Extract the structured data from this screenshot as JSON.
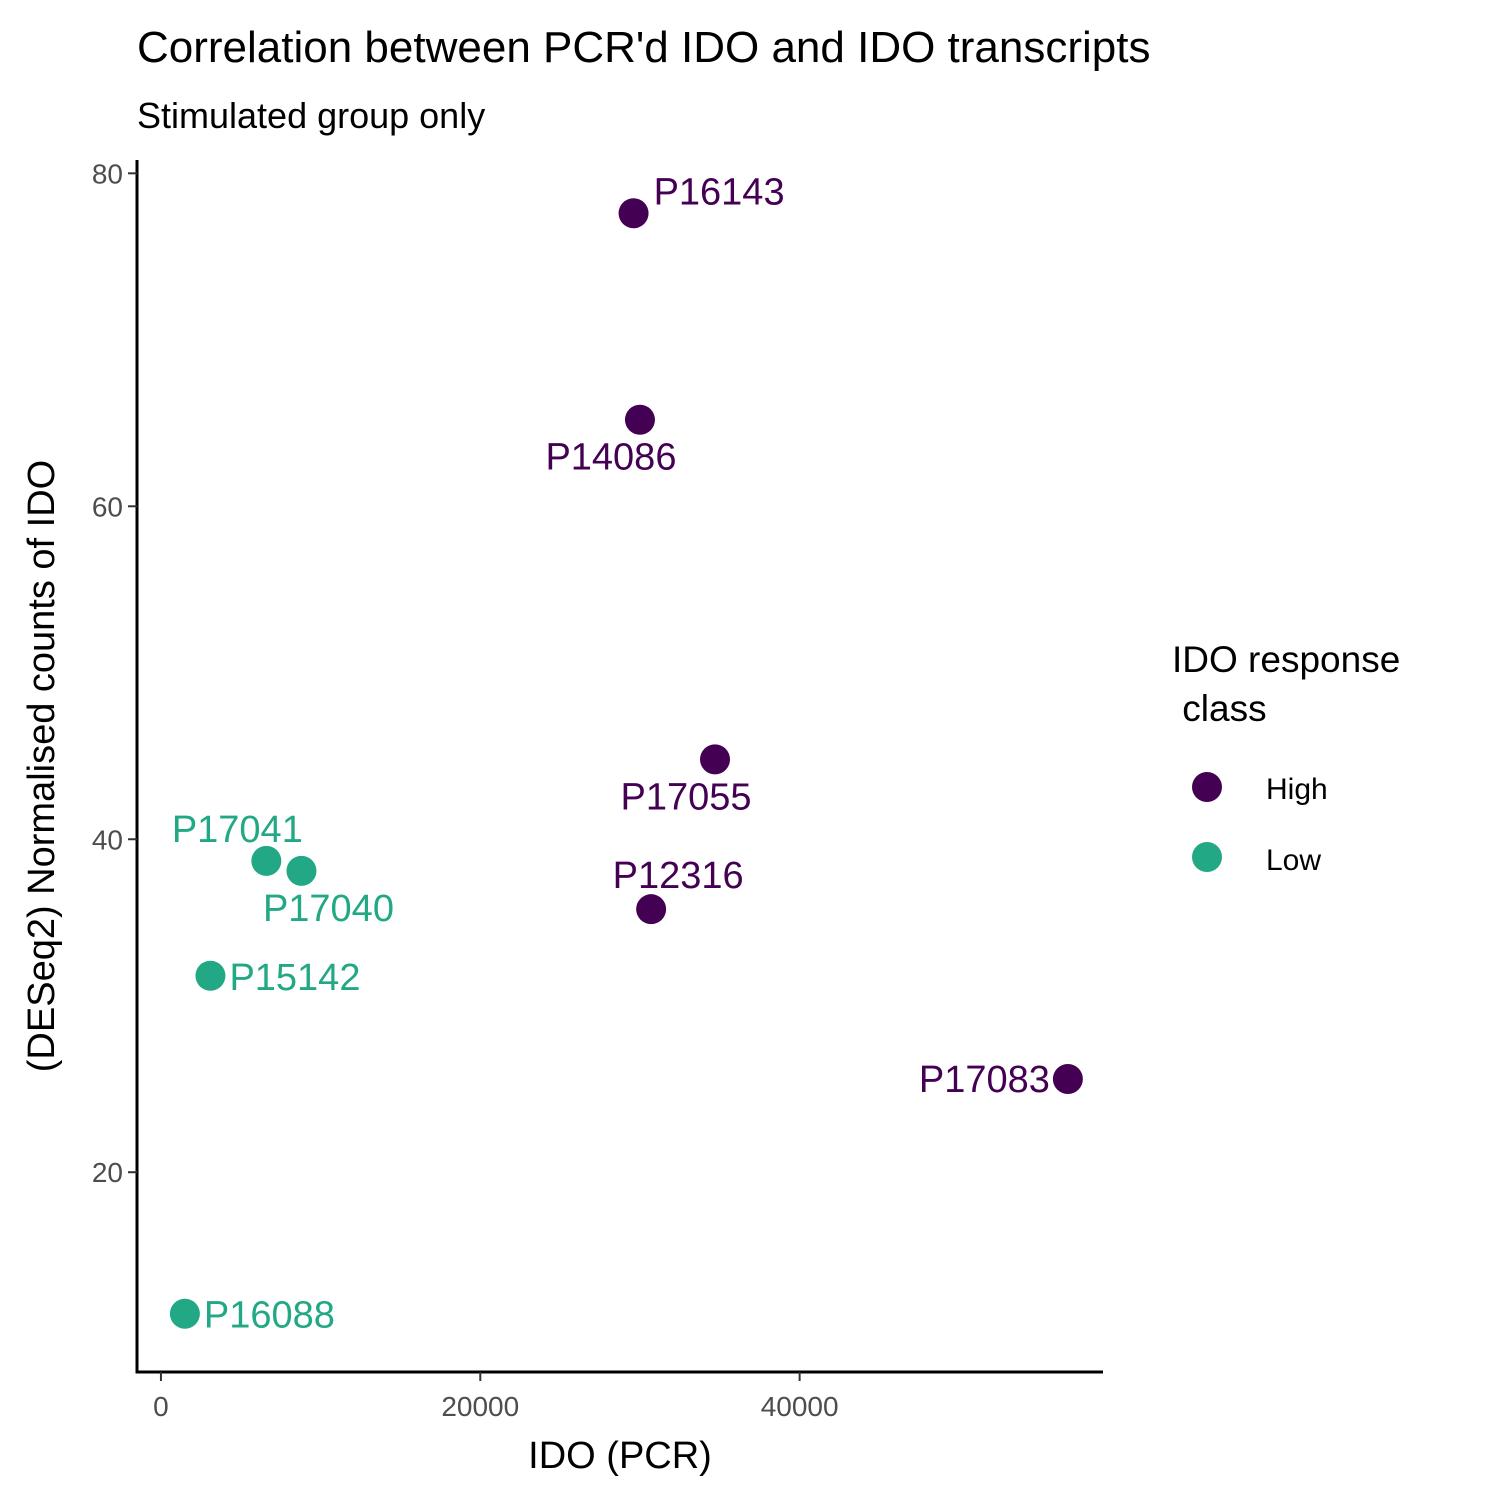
{
  "chart_data": {
    "type": "scatter",
    "title": "Correlation between PCR'd IDO and IDO transcripts",
    "subtitle": "Stimulated group only",
    "xlabel": "IDO (PCR)",
    "ylabel": "(DESeq2) Normalised counts of IDO",
    "xlim": [
      -1500,
      59000
    ],
    "ylim": [
      8,
      80.8
    ],
    "x_ticks": [
      0,
      20000,
      40000
    ],
    "x_tick_labels": [
      "0",
      "20000",
      "40000"
    ],
    "y_ticks": [
      20,
      40,
      60,
      80
    ],
    "y_tick_labels": [
      "20",
      "40",
      "60",
      "80"
    ],
    "grid": false,
    "legend": {
      "title_line1": "IDO response",
      "title_line2": " class",
      "position": "right",
      "entries": [
        {
          "label": "High",
          "color": "#440154"
        },
        {
          "label": "Low",
          "color": "#22a884"
        }
      ]
    },
    "series": [
      {
        "name": "High",
        "color": "#440154",
        "points": [
          {
            "label": "P16143",
            "x": 29600,
            "y": 77.6
          },
          {
            "label": "P14086",
            "x": 30000,
            "y": 65.2
          },
          {
            "label": "P17055",
            "x": 34700,
            "y": 44.8
          },
          {
            "label": "P12316",
            "x": 30700,
            "y": 35.8
          },
          {
            "label": "P17083",
            "x": 56800,
            "y": 25.6
          }
        ]
      },
      {
        "name": "Low",
        "color": "#22a884",
        "points": [
          {
            "label": "P17041",
            "x": 6600,
            "y": 38.7
          },
          {
            "label": "P17040",
            "x": 8800,
            "y": 38.1
          },
          {
            "label": "P15142",
            "x": 3100,
            "y": 31.8
          },
          {
            "label": "P16088",
            "x": 1500,
            "y": 11.5
          }
        ]
      }
    ]
  }
}
